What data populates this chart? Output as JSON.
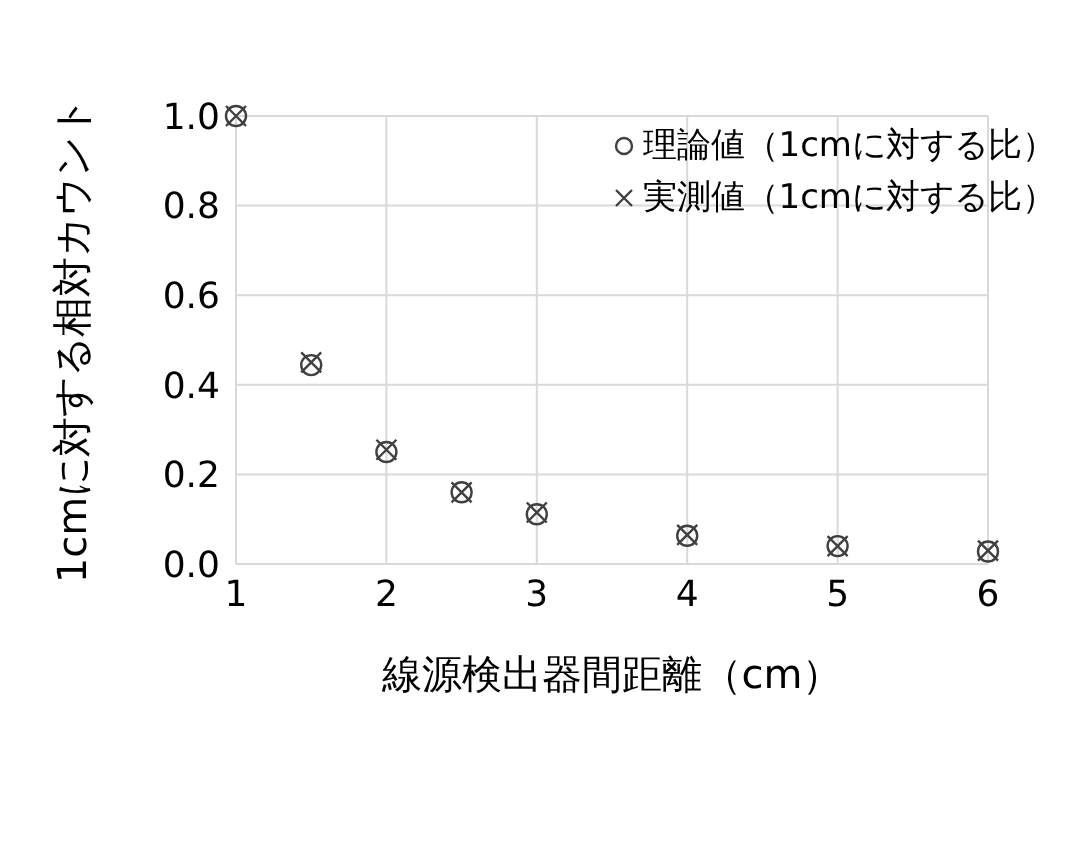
{
  "chart_data": {
    "type": "scatter",
    "xlabel": "線源検出器間距離（cm）",
    "ylabel": "1cmに対する相対カウント",
    "x": [
      1,
      1.5,
      2,
      2.5,
      3,
      4,
      5,
      6
    ],
    "series": [
      {
        "name": "理論値（1cmに対する比）",
        "color": "#404040",
        "marker": "circle",
        "values": [
          1.0,
          0.444,
          0.25,
          0.16,
          0.111,
          0.063,
          0.04,
          0.028
        ]
      },
      {
        "name": "実測値（1cmに対する比）",
        "color": "#404040",
        "marker": "cross",
        "values": [
          1.0,
          0.45,
          0.255,
          0.16,
          0.115,
          0.065,
          0.04,
          0.03
        ]
      }
    ],
    "xlim": [
      1,
      6
    ],
    "xticks": [
      1,
      2,
      3,
      4,
      5,
      6
    ],
    "ylim": [
      0,
      1
    ],
    "yticks": [
      {
        "value": 0,
        "label": "0.0"
      },
      0.2,
      0.4,
      0.6,
      0.8,
      {
        "value": 1,
        "label": "1.0"
      }
    ],
    "grid": true,
    "legend": "top right"
  }
}
